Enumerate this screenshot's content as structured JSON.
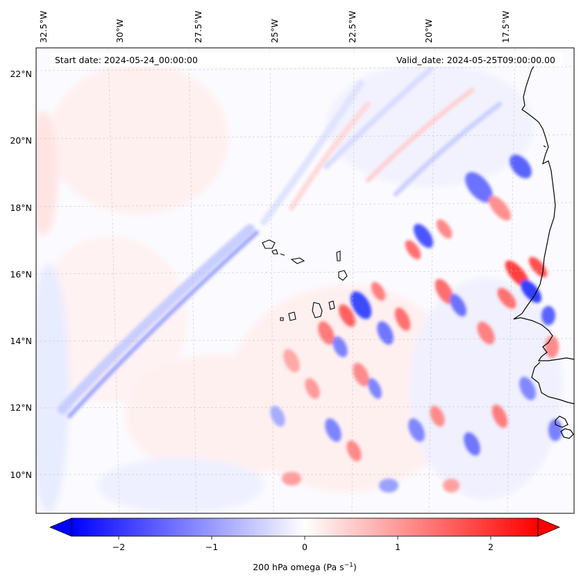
{
  "header": {
    "start_date": "Start date: 2024-05-24_00:00:00",
    "valid_date": "Valid_date: 2024-05-25T09:00:00.00"
  },
  "lon_labels": [
    "32.5°W",
    "30°W",
    "27.5°W",
    "25°W",
    "22.5°W",
    "20°W",
    "17.5°W"
  ],
  "lat_labels": [
    "22°N",
    "20°N",
    "18°N",
    "16°N",
    "14°N",
    "12°N",
    "10°N"
  ],
  "colorbar": {
    "ticks": [
      "−2",
      "−1",
      "0",
      "1",
      "2"
    ],
    "label": "200 hPa omega (Pa s",
    "label_sup": "−1",
    "label_end": ")",
    "vmin": -2.5,
    "vmax": 2.5,
    "extend": "both",
    "colormap": "bwr"
  },
  "colors": {
    "negative": "#0000ff",
    "neutral": "#ffffff",
    "positive": "#ff0000",
    "coastline": "#000000"
  }
}
